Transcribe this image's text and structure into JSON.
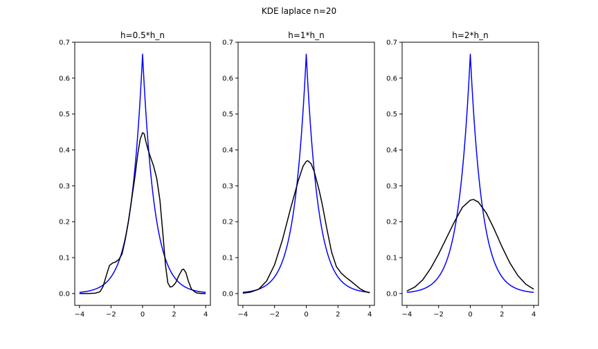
{
  "figure": {
    "suptitle": "KDE laplace n=20"
  },
  "chart_data": [
    {
      "type": "line",
      "title": "h=0.5*h_n",
      "xlabel": "",
      "ylabel": "",
      "xlim": [
        -4.3,
        4.3
      ],
      "ylim": [
        -0.033,
        0.7
      ],
      "xticks": [
        -4,
        -2,
        0,
        2,
        4
      ],
      "yticks": [
        0.0,
        0.1,
        0.2,
        0.3,
        0.4,
        0.5,
        0.6,
        0.7
      ],
      "grid": false,
      "series": [
        {
          "color": "#0000ff",
          "points": [
            [
              -4,
              0.003
            ]
          ]
        },
        {
          "color": "#000000",
          "points": [
            [
              -4,
              0.0
            ],
            [
              -3.5,
              0.0
            ],
            [
              -3.0,
              0.001
            ],
            [
              -2.7,
              0.005
            ],
            [
              -2.5,
              0.02
            ],
            [
              -2.3,
              0.05
            ],
            [
              -2.1,
              0.078
            ],
            [
              -1.9,
              0.085
            ],
            [
              -1.7,
              0.088
            ],
            [
              -1.5,
              0.095
            ],
            [
              -1.3,
              0.11
            ],
            [
              -1.1,
              0.15
            ],
            [
              -0.9,
              0.2
            ],
            [
              -0.7,
              0.26
            ],
            [
              -0.5,
              0.32
            ],
            [
              -0.3,
              0.39
            ],
            [
              -0.15,
              0.43
            ],
            [
              0.0,
              0.448
            ],
            [
              0.1,
              0.445
            ],
            [
              0.2,
              0.425
            ],
            [
              0.35,
              0.4
            ],
            [
              0.5,
              0.38
            ],
            [
              0.7,
              0.355
            ],
            [
              0.9,
              0.32
            ],
            [
              1.1,
              0.26
            ],
            [
              1.3,
              0.16
            ],
            [
              1.45,
              0.08
            ],
            [
              1.6,
              0.03
            ],
            [
              1.75,
              0.018
            ],
            [
              1.9,
              0.02
            ],
            [
              2.1,
              0.03
            ],
            [
              2.3,
              0.05
            ],
            [
              2.5,
              0.066
            ],
            [
              2.6,
              0.068
            ],
            [
              2.75,
              0.058
            ],
            [
              2.9,
              0.035
            ],
            [
              3.1,
              0.012
            ],
            [
              3.4,
              0.002
            ],
            [
              3.7,
              0.0
            ],
            [
              4.0,
              0.0
            ]
          ]
        }
      ]
    },
    {
      "type": "line",
      "title": "h=1*h_n",
      "xlabel": "",
      "ylabel": "",
      "xlim": [
        -4.3,
        4.3
      ],
      "ylim": [
        -0.033,
        0.7
      ],
      "xticks": [
        -4,
        -2,
        0,
        2,
        4
      ],
      "yticks": [
        0.0,
        0.1,
        0.2,
        0.3,
        0.4,
        0.5,
        0.6,
        0.7
      ],
      "grid": false,
      "series": [
        {
          "color": "#0000ff",
          "points": [
            [
              -4,
              0.003
            ]
          ]
        },
        {
          "color": "#000000",
          "points": [
            [
              -4,
              0.001
            ],
            [
              -3.5,
              0.004
            ],
            [
              -3.0,
              0.012
            ],
            [
              -2.5,
              0.035
            ],
            [
              -2.0,
              0.08
            ],
            [
              -1.5,
              0.15
            ],
            [
              -1.0,
              0.235
            ],
            [
              -0.5,
              0.315
            ],
            [
              -0.2,
              0.355
            ],
            [
              0.0,
              0.368
            ],
            [
              0.1,
              0.37
            ],
            [
              0.3,
              0.362
            ],
            [
              0.5,
              0.34
            ],
            [
              0.8,
              0.29
            ],
            [
              1.0,
              0.25
            ],
            [
              1.3,
              0.18
            ],
            [
              1.6,
              0.115
            ],
            [
              1.9,
              0.075
            ],
            [
              2.2,
              0.057
            ],
            [
              2.5,
              0.045
            ],
            [
              2.8,
              0.035
            ],
            [
              3.1,
              0.024
            ],
            [
              3.4,
              0.013
            ],
            [
              3.7,
              0.006
            ],
            [
              4.0,
              0.002
            ]
          ]
        }
      ]
    },
    {
      "type": "line",
      "title": "h=2*h_n",
      "xlabel": "",
      "ylabel": "",
      "xlim": [
        -4.3,
        4.3
      ],
      "ylim": [
        -0.033,
        0.7
      ],
      "xticks": [
        -4,
        -2,
        0,
        2,
        4
      ],
      "yticks": [
        0.0,
        0.1,
        0.2,
        0.3,
        0.4,
        0.5,
        0.6,
        0.7
      ],
      "grid": false,
      "series": [
        {
          "color": "#0000ff",
          "points": [
            [
              -4,
              0.003
            ]
          ]
        },
        {
          "color": "#000000",
          "points": [
            [
              -4,
              0.007
            ],
            [
              -3.5,
              0.018
            ],
            [
              -3.0,
              0.038
            ],
            [
              -2.5,
              0.07
            ],
            [
              -2.0,
              0.11
            ],
            [
              -1.5,
              0.155
            ],
            [
              -1.0,
              0.2
            ],
            [
              -0.5,
              0.24
            ],
            [
              0.0,
              0.26
            ],
            [
              0.2,
              0.262
            ],
            [
              0.5,
              0.255
            ],
            [
              1.0,
              0.225
            ],
            [
              1.5,
              0.18
            ],
            [
              2.0,
              0.13
            ],
            [
              2.5,
              0.085
            ],
            [
              3.0,
              0.05
            ],
            [
              3.5,
              0.026
            ],
            [
              4.0,
              0.012
            ]
          ]
        }
      ]
    }
  ]
}
